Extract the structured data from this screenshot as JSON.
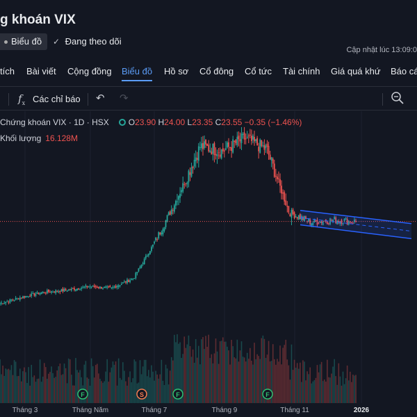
{
  "page": {
    "title": "g khoán VIX",
    "chip_label": "Biểu đồ",
    "follow_label": "Đang theo dõi",
    "updated_label": "Cập nhật lúc  13:09:0"
  },
  "tabs": [
    {
      "label": "tích"
    },
    {
      "label": "Bài viết"
    },
    {
      "label": "Cộng đồng"
    },
    {
      "label": "Biểu đồ",
      "active": true
    },
    {
      "label": "Hồ sơ"
    },
    {
      "label": "Cổ đông"
    },
    {
      "label": "Cổ tức"
    },
    {
      "label": "Tài chính"
    },
    {
      "label": "Giá quá khứ"
    },
    {
      "label": "Báo cá"
    }
  ],
  "toolbar": {
    "fx_icon": "f",
    "indicators_label": "Các chỉ báo",
    "undo_icon": "↶",
    "redo_icon": "↷"
  },
  "legend": {
    "symbol": "Chứng khoán VIX · 1D · HSX",
    "o_label": "O",
    "o_value": "23.90",
    "h_label": "H",
    "h_value": "24.00",
    "l_label": "L",
    "l_value": "23.35",
    "c_label": "C",
    "c_value": "23.55",
    "change": "−0.35 (−1.46%)",
    "volume_label": "Khối lượng",
    "volume_value": "16.128M"
  },
  "colors": {
    "up": "#26a69a",
    "down": "#ef5350",
    "channel": "#2962ff",
    "accent": "#5b9cf6"
  },
  "chart_data": {
    "type": "candlestick",
    "symbol": "VIX",
    "interval": "1D",
    "last_price": 23.55,
    "price_line": 23.55,
    "x_ticks": [
      "Tháng 3",
      "Tháng Năm",
      "Tháng 7",
      "Tháng 9",
      "Tháng 11",
      "2026"
    ],
    "trend_points": [
      {
        "month": "Tháng 2",
        "price": 10.5
      },
      {
        "month": "Tháng 3",
        "price": 11.5
      },
      {
        "month": "Tháng 4",
        "price": 12.3
      },
      {
        "month": "Tháng 5",
        "price": 12.6
      },
      {
        "month": "Tháng 6",
        "price": 13.2
      },
      {
        "month": "Tháng 7",
        "price": 12.9
      },
      {
        "month": "Tháng 7b",
        "price": 14.5
      },
      {
        "month": "Tháng 8",
        "price": 20.5
      },
      {
        "month": "Tháng 8b",
        "price": 27.5
      },
      {
        "month": "Tháng 9",
        "price": 35.5
      },
      {
        "month": "Tháng 9b",
        "price": 34.8
      },
      {
        "month": "Tháng 10",
        "price": 36.8
      },
      {
        "month": "Tháng 10b",
        "price": 35.0
      },
      {
        "month": "Tháng 11",
        "price": 25.0
      },
      {
        "month": "Tháng 11b",
        "price": 23.4
      },
      {
        "month": "Tháng 12",
        "price": 23.8
      },
      {
        "month": "Tháng 12b",
        "price": 23.55
      }
    ],
    "event_markers": [
      {
        "type": "F",
        "month": "Tháng Năm"
      },
      {
        "type": "S",
        "month": "Tháng 7"
      },
      {
        "type": "F",
        "month": "Tháng 7"
      },
      {
        "type": "F",
        "month": "Tháng 9"
      },
      {
        "type": "F",
        "month": "Tháng 10"
      }
    ],
    "drawings": [
      {
        "type": "descending-channel",
        "from_month": "Tháng 11",
        "to_month": "2026"
      }
    ]
  }
}
